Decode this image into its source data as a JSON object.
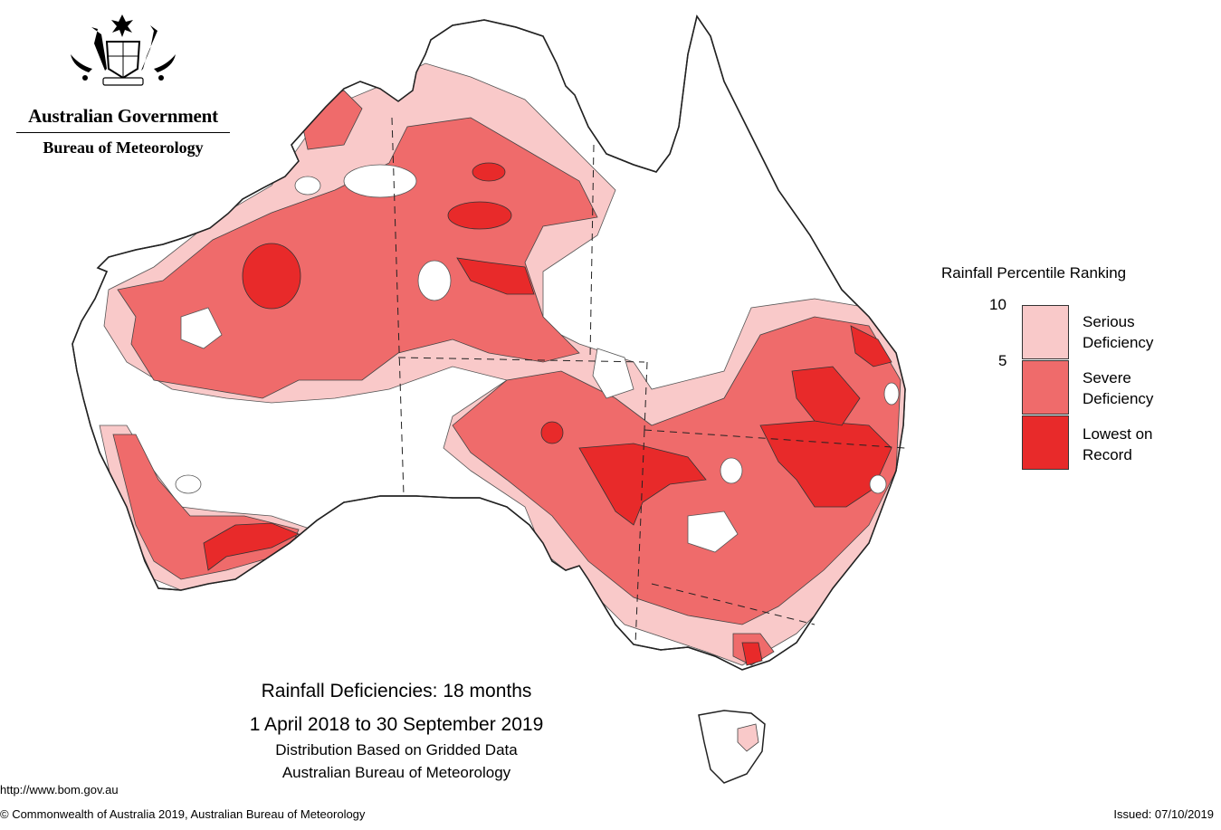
{
  "header": {
    "government": "Australian Government",
    "agency": "Bureau of Meteorology"
  },
  "legend": {
    "title": "Rainfall Percentile Ranking",
    "ticks": [
      "10",
      "5"
    ],
    "categories": [
      {
        "label_line1": "Serious",
        "label_line2": "Deficiency",
        "color": "#f9c9c9"
      },
      {
        "label_line1": "Severe",
        "label_line2": "Deficiency",
        "color": "#ef6b6b"
      },
      {
        "label_line1": "Lowest on",
        "label_line2": "Record",
        "color": "#e82a2a"
      }
    ]
  },
  "caption": {
    "title": "Rainfall Deficiencies: 18 months",
    "period": "1 April 2018 to 30 September 2019",
    "line3": "Distribution Based on Gridded Data",
    "line4": "Australian Bureau of Meteorology"
  },
  "footer": {
    "url": "http://www.bom.gov.au",
    "copyright": "© Commonwealth of Australia 2019, Australian Bureau of Meteorology",
    "issued": "Issued: 07/10/2019"
  },
  "colors": {
    "outline": "#222222",
    "background": "#ffffff"
  }
}
